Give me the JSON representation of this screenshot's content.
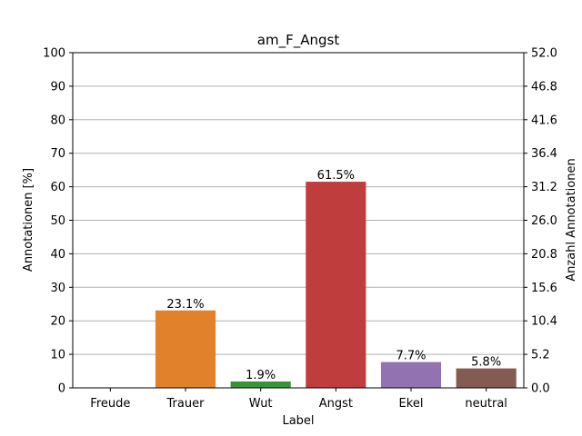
{
  "chart_data": {
    "type": "bar",
    "title": "am_F_Angst",
    "xlabel": "Label",
    "ylabel": "Annotationen [%]",
    "ylabel_right": "Anzahl Annotationen",
    "categories": [
      "Freude",
      "Trauer",
      "Wut",
      "Angst",
      "Ekel",
      "neutral"
    ],
    "values": [
      0.0,
      23.1,
      1.9,
      61.5,
      7.7,
      5.8
    ],
    "data_labels": [
      "",
      "23.1%",
      "1.9%",
      "61.5%",
      "7.7%",
      "5.8%"
    ],
    "colors": [
      "#1f77b4",
      "#e1812c",
      "#3a923a",
      "#c03d3e",
      "#9372b2",
      "#845b53"
    ],
    "ylim": [
      0,
      100
    ],
    "yticks": [
      "0",
      "10",
      "20",
      "30",
      "40",
      "50",
      "60",
      "70",
      "80",
      "90",
      "100"
    ],
    "ylim_right": [
      0,
      52
    ],
    "yticks_right": [
      "0.0",
      "5.2",
      "10.4",
      "15.6",
      "20.8",
      "26.0",
      "31.2",
      "36.4",
      "41.6",
      "46.8",
      "52.0"
    ],
    "grid": true
  }
}
